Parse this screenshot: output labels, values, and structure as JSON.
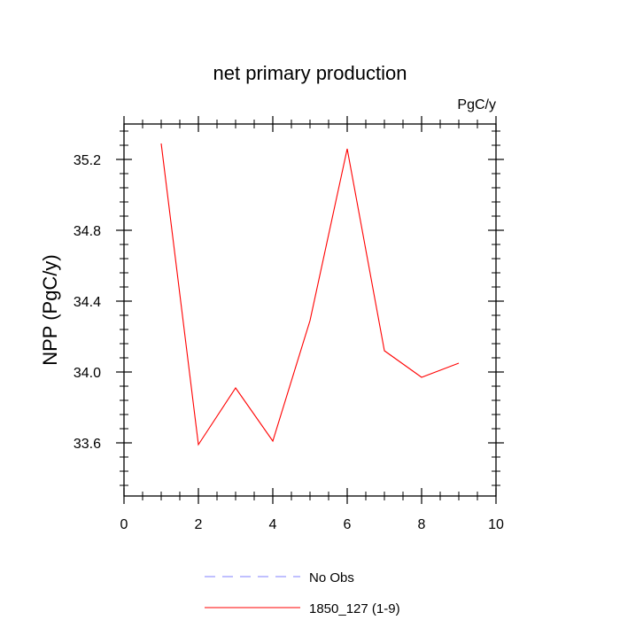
{
  "chart_data": {
    "type": "line",
    "title": "net primary production",
    "units_label": "PgC/y",
    "xlabel": "",
    "ylabel": "NPP  (PgC/y)",
    "xlim": [
      0,
      10
    ],
    "ylim": [
      33.3,
      35.4
    ],
    "x_ticks": [
      0,
      2,
      4,
      6,
      8,
      10
    ],
    "x_tick_labels": [
      "0",
      "2",
      "4",
      "6",
      "8",
      "10"
    ],
    "y_ticks": [
      33.6,
      34.0,
      34.4,
      34.8,
      35.2
    ],
    "y_tick_labels": [
      "33.6",
      "34.0",
      "34.4",
      "34.8",
      "35.2"
    ],
    "grid": false,
    "legend_position": "bottom-center",
    "series": [
      {
        "name": "1850_127 (1-9)",
        "color": "#ff0000",
        "style": "solid",
        "x": [
          1,
          2,
          3,
          4,
          5,
          6,
          7,
          8,
          9
        ],
        "values": [
          35.29,
          33.59,
          33.91,
          33.61,
          34.29,
          35.26,
          34.12,
          33.97,
          34.05
        ]
      }
    ],
    "legend": [
      {
        "label": "No Obs",
        "color": "#8080ff",
        "style": "dashed"
      },
      {
        "label": "1850_127 (1-9)",
        "color": "#ff0000",
        "style": "solid"
      }
    ]
  }
}
